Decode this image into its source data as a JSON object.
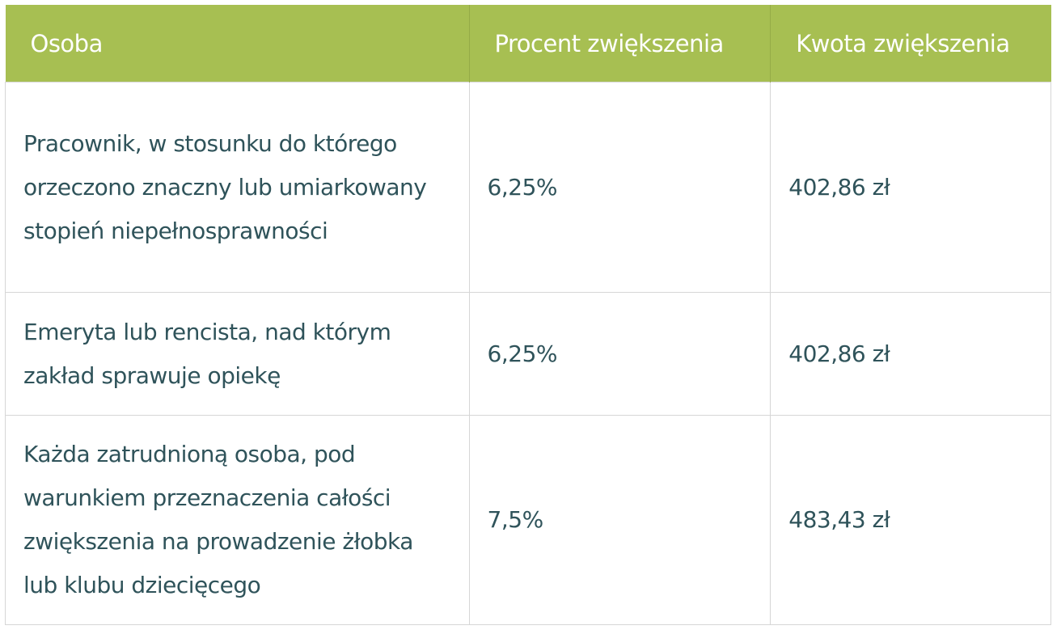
{
  "table": {
    "headers": [
      "Osoba",
      "Procent zwiększenia",
      "Kwota zwiększenia"
    ],
    "rows": [
      {
        "person": "Pracownik, w stosunku do którego orzeczono znaczny lub umiarkowany stopień niepełnosprawności",
        "percent": "6,25%",
        "amount": "402,86 zł"
      },
      {
        "person": "Emeryta lub rencista, nad którym zakład sprawuje opiekę",
        "percent": "6,25%",
        "amount": "402,86 zł"
      },
      {
        "person": "Każda zatrudnioną osoba, pod warunkiem przeznaczenia całości zwiększenia na prowadzenie żłobka lub klubu dziecięcego",
        "percent": "7,5%",
        "amount": "483,43 zł"
      }
    ]
  },
  "colors": {
    "header_bg": "#a7bf52",
    "text": "#2f535a"
  }
}
